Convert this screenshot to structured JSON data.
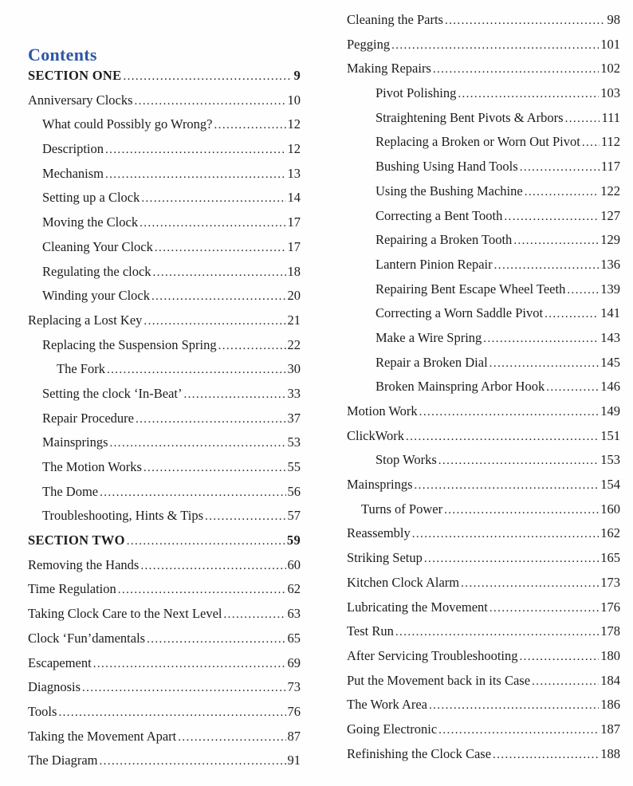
{
  "page": {
    "title": "Contents",
    "accent_color": "#2a58a2",
    "text_color": "#1c1c1c"
  },
  "toc": {
    "left": [
      {
        "label": "SECTION ONE",
        "page": "9",
        "level": 0,
        "bold": true
      },
      {
        "label": "Anniversary Clocks",
        "page": "10",
        "level": 0
      },
      {
        "label": "What could Possibly go Wrong?",
        "page": "12",
        "level": 1
      },
      {
        "label": "Description",
        "page": "12",
        "level": 1
      },
      {
        "label": "Mechanism",
        "page": "13",
        "level": 1
      },
      {
        "label": "Setting up a Clock",
        "page": "14",
        "level": 1
      },
      {
        "label": "Moving the Clock",
        "page": "17",
        "level": 1
      },
      {
        "label": "Cleaning Your Clock",
        "page": "17",
        "level": 1
      },
      {
        "label": "Regulating the clock",
        "page": "18",
        "level": 1
      },
      {
        "label": "Winding your Clock",
        "page": "20",
        "level": 1
      },
      {
        "label": "Replacing a Lost Key",
        "page": "21",
        "level": 0
      },
      {
        "label": "Replacing the Suspension Spring",
        "page": "22",
        "level": 1
      },
      {
        "label": "The Fork",
        "page": "30",
        "level": 2
      },
      {
        "label": "Setting the clock ‘In-Beat’",
        "page": "33",
        "level": 1
      },
      {
        "label": "Repair Procedure",
        "page": "37",
        "level": 1
      },
      {
        "label": "Mainsprings",
        "page": "53",
        "level": 1
      },
      {
        "label": "The Motion Works",
        "page": "55",
        "level": 1
      },
      {
        "label": "The Dome",
        "page": "56",
        "level": 1
      },
      {
        "label": "Troubleshooting, Hints & Tips",
        "page": "57",
        "level": 1
      },
      {
        "label": "SECTION TWO",
        "page": "59",
        "level": 0,
        "bold": true
      },
      {
        "label": "Removing the Hands",
        "page": "60",
        "level": 0
      },
      {
        "label": "Time Regulation",
        "page": "62",
        "level": 0
      },
      {
        "label": "Taking Clock Care to the Next Level",
        "page": "63",
        "level": 0
      },
      {
        "label": "Clock ‘Fun’damentals",
        "page": "65",
        "level": 0
      },
      {
        "label": "Escapement",
        "page": "69",
        "level": 0
      },
      {
        "label": "Diagnosis",
        "page": "73",
        "level": 0
      },
      {
        "label": "Tools",
        "page": "76",
        "level": 0
      },
      {
        "label": "Taking the Movement Apart",
        "page": "87",
        "level": 0
      },
      {
        "label": "The Diagram",
        "page": "91",
        "level": 0
      }
    ],
    "right": [
      {
        "label": "Cleaning the Parts",
        "page": "98",
        "level": 0
      },
      {
        "label": "Pegging",
        "page": "101",
        "level": 0
      },
      {
        "label": "Making Repairs",
        "page": "102",
        "level": 0
      },
      {
        "label": "Pivot Polishing",
        "page": "103",
        "level": 2
      },
      {
        "label": "Straightening Bent Pivots & Arbors",
        "page": "111",
        "level": 2
      },
      {
        "label": "Replacing a Broken or Worn Out Pivot",
        "page": "112",
        "level": 2
      },
      {
        "label": "Bushing Using Hand Tools",
        "page": "117",
        "level": 2
      },
      {
        "label": "Using the Bushing Machine",
        "page": "122",
        "level": 2
      },
      {
        "label": "Correcting a Bent Tooth",
        "page": "127",
        "level": 2
      },
      {
        "label": "Repairing a Broken Tooth",
        "page": "129",
        "level": 2
      },
      {
        "label": "Lantern Pinion Repair",
        "page": "136",
        "level": 2
      },
      {
        "label": "Repairing Bent Escape Wheel Teeth",
        "page": "139",
        "level": 2
      },
      {
        "label": "Correcting a Worn Saddle Pivot",
        "page": "141",
        "level": 2
      },
      {
        "label": "Make a Wire Spring",
        "page": "143",
        "level": 2
      },
      {
        "label": "Repair a Broken Dial",
        "page": "145",
        "level": 2
      },
      {
        "label": "Broken Mainspring Arbor Hook",
        "page": "146",
        "level": 2
      },
      {
        "label": "Motion Work",
        "page": "149",
        "level": 0
      },
      {
        "label": "ClickWork",
        "page": "151",
        "level": 0
      },
      {
        "label": "Stop Works",
        "page": "153",
        "level": 2
      },
      {
        "label": "Mainsprings",
        "page": "154",
        "level": 0
      },
      {
        "label": "Turns of Power",
        "page": "160",
        "level": 1
      },
      {
        "label": "Reassembly",
        "page": "162",
        "level": 0
      },
      {
        "label": "Striking Setup",
        "page": "165",
        "level": 0
      },
      {
        "label": "Kitchen Clock Alarm",
        "page": "173",
        "level": 0
      },
      {
        "label": "Lubricating the Movement",
        "page": "176",
        "level": 0
      },
      {
        "label": "Test Run",
        "page": "178",
        "level": 0
      },
      {
        "label": "After Servicing Troubleshooting",
        "page": "180",
        "level": 0
      },
      {
        "label": "Put the Movement back in its Case",
        "page": "184",
        "level": 0
      },
      {
        "label": "The Work Area",
        "page": "186",
        "level": 0
      },
      {
        "label": "Going Electronic",
        "page": "187",
        "level": 0
      },
      {
        "label": "Refinishing the Clock Case",
        "page": "188",
        "level": 0
      }
    ]
  }
}
